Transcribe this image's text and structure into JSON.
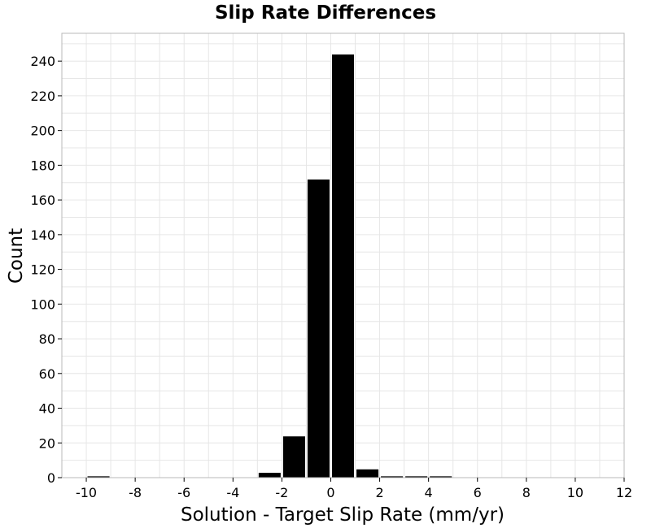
{
  "chart_data": {
    "type": "bar",
    "title": "Slip Rate Differences",
    "xlabel": "Solution - Target Slip Rate (mm/yr)",
    "ylabel": "Count",
    "xlim": [
      -11,
      12
    ],
    "ylim": [
      0,
      256
    ],
    "x_ticks": [
      -10,
      -8,
      -6,
      -4,
      -2,
      0,
      2,
      4,
      6,
      8,
      10,
      12
    ],
    "y_ticks": [
      0,
      20,
      40,
      60,
      80,
      100,
      120,
      140,
      160,
      180,
      200,
      220,
      240
    ],
    "grid": true,
    "bin_width": 1,
    "bars": [
      {
        "x": -9.5,
        "value": 1
      },
      {
        "x": -2.5,
        "value": 3
      },
      {
        "x": -1.5,
        "value": 24
      },
      {
        "x": -0.5,
        "value": 172
      },
      {
        "x": 0.5,
        "value": 244
      },
      {
        "x": 1.5,
        "value": 5
      },
      {
        "x": 2.5,
        "value": 1
      },
      {
        "x": 3.5,
        "value": 1
      },
      {
        "x": 4.5,
        "value": 1
      }
    ],
    "colors": {
      "bar": "#000000",
      "bar_edge": "#ffffff",
      "grid": "#e6e6e6",
      "frame": "#b8b8b8"
    }
  }
}
